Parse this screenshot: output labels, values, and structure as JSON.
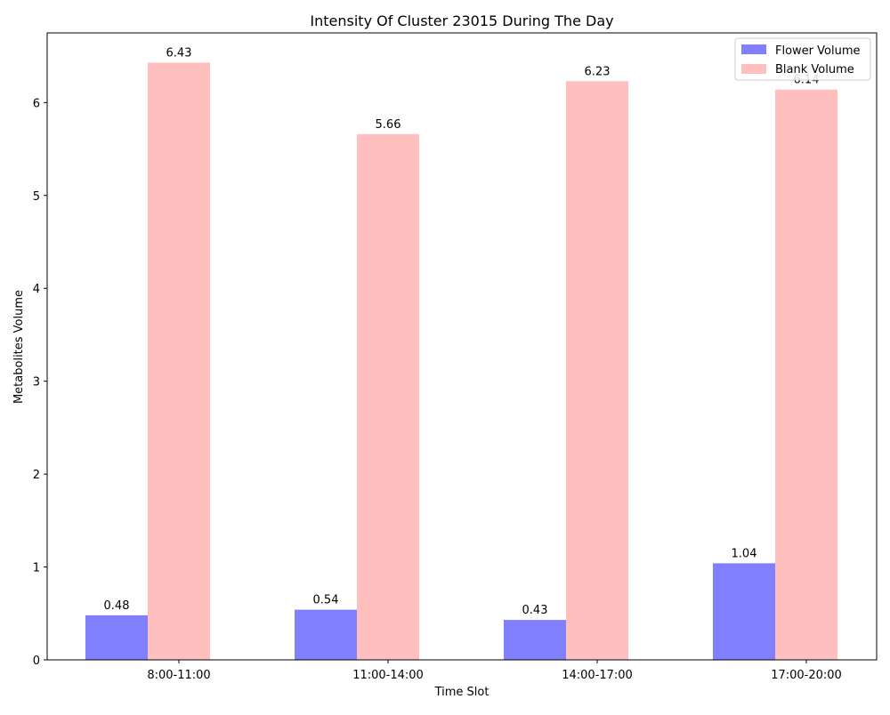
{
  "chart_data": {
    "type": "bar",
    "title": "Intensity Of Cluster 23015 During The Day",
    "xlabel": "Time Slot",
    "ylabel": "Metabolites Volume",
    "categories": [
      "8:00-11:00",
      "11:00-14:00",
      "14:00-17:00",
      "17:00-20:00"
    ],
    "series": [
      {
        "name": "Flower Volume",
        "values": [
          0.48,
          0.54,
          0.43,
          1.04
        ],
        "color": "#8080ff",
        "labels": [
          "0.48",
          "0.54",
          "0.43",
          "1.04"
        ]
      },
      {
        "name": "Blank Volume",
        "values": [
          6.43,
          5.66,
          6.23,
          6.14
        ],
        "color": "#ffbfbf",
        "labels": [
          "6.43",
          "5.66",
          "6.23",
          "6.14"
        ]
      }
    ],
    "ylim": [
      0,
      6.75
    ],
    "yticks": [
      0,
      1,
      2,
      3,
      4,
      5,
      6
    ],
    "ytick_labels": [
      "0",
      "1",
      "2",
      "3",
      "4",
      "5",
      "6"
    ],
    "grid": false,
    "legend_position": "top-right"
  }
}
